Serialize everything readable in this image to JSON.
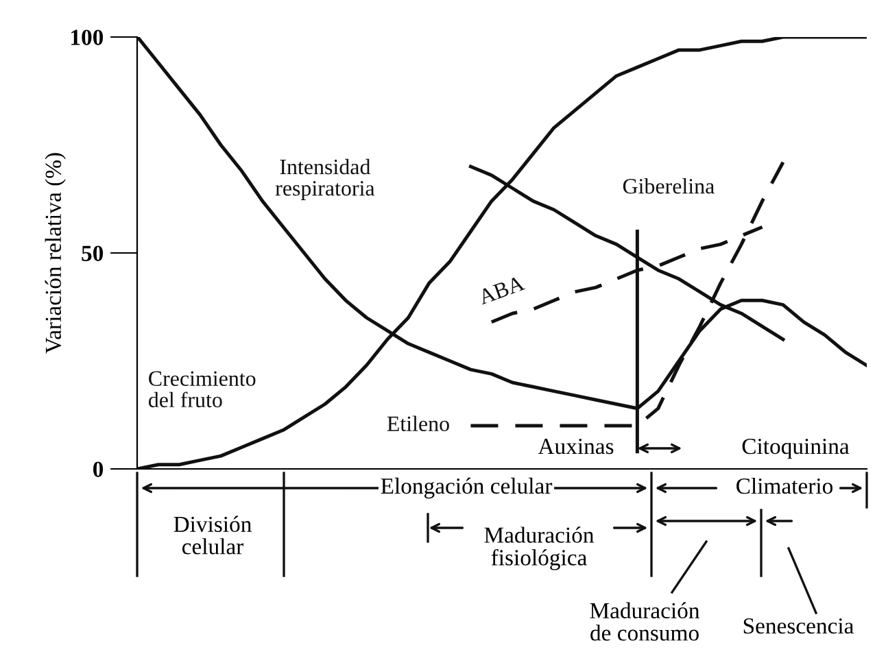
{
  "chart_data": {
    "type": "line",
    "ylabel": "Variación relativa (%)",
    "categories": [
      null,
      null,
      null,
      null,
      null,
      null,
      null,
      null,
      null,
      null,
      null,
      null,
      null,
      null,
      null,
      null,
      null,
      null,
      null,
      null,
      null,
      null,
      null,
      null,
      null,
      null,
      null,
      null,
      null,
      null,
      null,
      null,
      null,
      null,
      null,
      null
    ],
    "ylim": [
      0,
      100
    ],
    "yticks": [
      0,
      50,
      100
    ],
    "grid": false,
    "legend": false,
    "series": [
      {
        "name": "Intensidad\nrespiratoria",
        "color": "#111111",
        "values": [
          100,
          94,
          88,
          82,
          75,
          69,
          62,
          56,
          50,
          44,
          39,
          35,
          32,
          29,
          27,
          25,
          23,
          22,
          20,
          19,
          18,
          17,
          16,
          15,
          14,
          18,
          25,
          32,
          37,
          39,
          39,
          38,
          34,
          31,
          27,
          24
        ]
      },
      {
        "name": "Crecimiento\ndel fruto",
        "color": "#111111",
        "values": [
          0,
          1,
          1,
          2,
          3,
          5,
          7,
          9,
          12,
          15,
          19,
          24,
          30,
          35,
          43,
          48,
          55,
          62,
          67,
          73,
          79,
          83,
          87,
          91,
          93,
          95,
          97,
          97,
          98,
          99,
          99,
          100,
          100,
          100,
          100,
          100
        ]
      },
      {
        "name": "Giberelina",
        "color": "#111111",
        "values": [
          null,
          null,
          null,
          null,
          null,
          null,
          null,
          null,
          null,
          null,
          null,
          null,
          null,
          null,
          null,
          null,
          70,
          68,
          65,
          62,
          60,
          57,
          54,
          52,
          49,
          46,
          44,
          41,
          38,
          36,
          33,
          30,
          null,
          null,
          null,
          null
        ]
      },
      {
        "name": "ABA",
        "color": "#111111",
        "line_style": "dashed",
        "values": [
          null,
          null,
          null,
          null,
          null,
          null,
          null,
          null,
          null,
          null,
          null,
          null,
          null,
          null,
          null,
          null,
          null,
          34,
          36,
          37,
          39,
          41,
          42,
          44,
          46,
          47,
          49,
          51,
          52,
          54,
          56,
          null,
          null,
          null,
          null,
          null
        ]
      },
      {
        "name": "Etileno",
        "color": "#111111",
        "line_style": "dashed",
        "values": [
          null,
          null,
          null,
          null,
          null,
          null,
          null,
          null,
          null,
          null,
          null,
          null,
          null,
          null,
          null,
          null,
          10,
          10,
          10,
          10,
          10,
          10,
          10,
          10,
          10,
          14,
          24,
          33,
          43,
          52,
          62,
          71,
          null,
          null,
          null,
          null
        ]
      }
    ],
    "annotations": [
      "Auxinas",
      "Citoquinina",
      "División\ncelular",
      "Elongación celular",
      "Maduración\nfisiológica",
      "Climaterio",
      "Maduración\nde consumo",
      "Senescencia"
    ]
  }
}
